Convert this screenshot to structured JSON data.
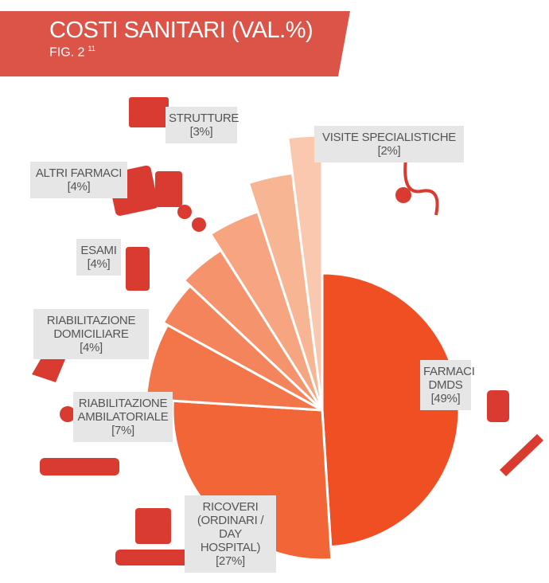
{
  "chart_data": {
    "type": "pie",
    "title": "COSTI SANITARI (VAL.%)",
    "subtitle": "FIG. 2",
    "footnote_ref": "11",
    "categories": [
      "FARMACI DMDS",
      "RICOVERI (ORDINARI / DAY HOSPITAL)",
      "RIABILITAZIONE AMBILATORIALE",
      "RIABILITAZIONE DOMICILIARE",
      "ESAMI",
      "ALTRI FARMACI",
      "STRUTTURE",
      "VISITE SPECIALISTICHE"
    ],
    "values": [
      49,
      27,
      7,
      4,
      4,
      4,
      3,
      2
    ],
    "value_labels": [
      "[49%]",
      "[27%]",
      "[7%]",
      "[4%]",
      "[4%]",
      "[4%]",
      "[3%]",
      "[2%]"
    ],
    "colors": [
      "#f04e23",
      "#f26536",
      "#f3764a",
      "#f4845b",
      "#f5946c",
      "#f7a580",
      "#f8b594",
      "#f9c8ae"
    ]
  }
}
